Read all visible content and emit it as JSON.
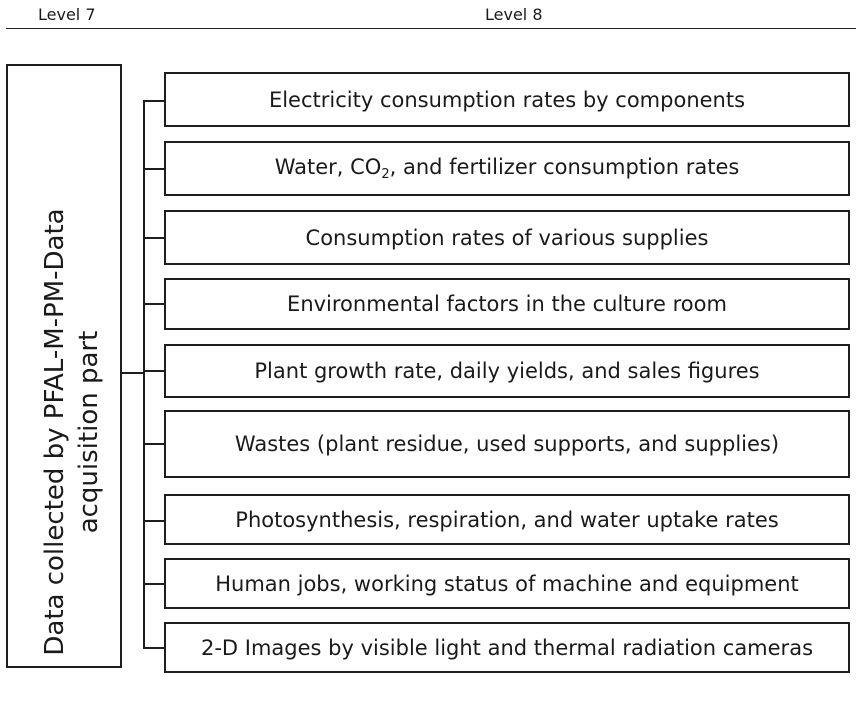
{
  "header": {
    "left": "Level 7",
    "right": "Level 8"
  },
  "root": {
    "line1": "Data collected by PFAL-M-PM-Data",
    "line2": "acquisition part"
  },
  "items": [
    {
      "text": "Electricity consumption rates by components"
    },
    {
      "pre": "Water, CO",
      "sub": "2",
      "post": ", and fertilizer consumption rates"
    },
    {
      "text": "Consumption rates of various supplies"
    },
    {
      "text": "Environmental factors in the culture room"
    },
    {
      "text": "Plant growth rate, daily yields, and sales figures"
    },
    {
      "text": "Wastes (plant residue, used supports, and supplies)"
    },
    {
      "text": "Photosynthesis, respiration, and water uptake rates"
    },
    {
      "text": "Human jobs, working status of machine and equipment"
    },
    {
      "text": "2-D Images by visible light and thermal radiation cameras"
    }
  ]
}
